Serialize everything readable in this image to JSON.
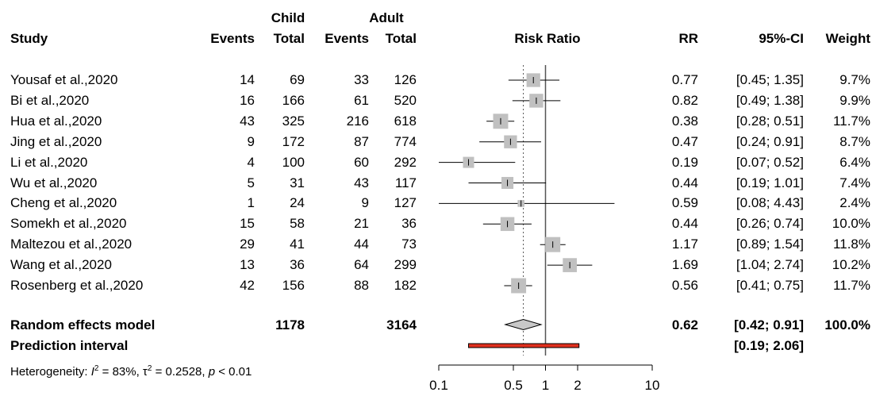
{
  "headers": {
    "study": "Study",
    "child_group": "Child",
    "adult_group": "Adult",
    "events1": "Events",
    "total1": "Total",
    "events2": "Events",
    "total2": "Total",
    "risk_ratio": "Risk Ratio",
    "rr": "RR",
    "ci": "95%-CI",
    "weight": "Weight"
  },
  "studies": [
    {
      "name": "Yousaf et al.,2020",
      "e1": "14",
      "n1": "69",
      "e2": "33",
      "n2": "126",
      "rr_text": "0.77",
      "ci_text": "[0.45; 1.35]",
      "w_text": "9.7%"
    },
    {
      "name": "Bi et al.,2020",
      "e1": "16",
      "n1": "166",
      "e2": "61",
      "n2": "520",
      "rr_text": "0.82",
      "ci_text": "[0.49; 1.38]",
      "w_text": "9.9%"
    },
    {
      "name": "Hua et al.,2020",
      "e1": "43",
      "n1": "325",
      "e2": "216",
      "n2": "618",
      "rr_text": "0.38",
      "ci_text": "[0.28; 0.51]",
      "w_text": "11.7%"
    },
    {
      "name": "Jing et al.,2020",
      "e1": "9",
      "n1": "172",
      "e2": "87",
      "n2": "774",
      "rr_text": "0.47",
      "ci_text": "[0.24; 0.91]",
      "w_text": "8.7%"
    },
    {
      "name": "Li et al.,2020",
      "e1": "4",
      "n1": "100",
      "e2": "60",
      "n2": "292",
      "rr_text": "0.19",
      "ci_text": "[0.07; 0.52]",
      "w_text": "6.4%"
    },
    {
      "name": "Wu et al.,2020",
      "e1": "5",
      "n1": "31",
      "e2": "43",
      "n2": "117",
      "rr_text": "0.44",
      "ci_text": "[0.19; 1.01]",
      "w_text": "7.4%"
    },
    {
      "name": "Cheng et al.,2020",
      "e1": "1",
      "n1": "24",
      "e2": "9",
      "n2": "127",
      "rr_text": "0.59",
      "ci_text": "[0.08; 4.43]",
      "w_text": "2.4%"
    },
    {
      "name": "Somekh et al.,2020",
      "e1": "15",
      "n1": "58",
      "e2": "21",
      "n2": "36",
      "rr_text": "0.44",
      "ci_text": "[0.26; 0.74]",
      "w_text": "10.0%"
    },
    {
      "name": "Maltezou et al.,2020",
      "e1": "29",
      "n1": "41",
      "e2": "44",
      "n2": "73",
      "rr_text": "1.17",
      "ci_text": "[0.89; 1.54]",
      "w_text": "11.8%"
    },
    {
      "name": "Wang et al.,2020",
      "e1": "13",
      "n1": "36",
      "e2": "64",
      "n2": "299",
      "rr_text": "1.69",
      "ci_text": "[1.04; 2.74]",
      "w_text": "10.2%"
    },
    {
      "name": "Rosenberg et al.,2020",
      "e1": "42",
      "n1": "156",
      "e2": "88",
      "n2": "182",
      "rr_text": "0.56",
      "ci_text": "[0.41; 0.75]",
      "w_text": "11.7%"
    }
  ],
  "pooled": {
    "label": "Random effects model",
    "n1": "1178",
    "n2": "3164",
    "rr_text": "0.62",
    "ci_text": "[0.42; 0.91]",
    "w_text": "100.0%"
  },
  "prediction": {
    "label": "Prediction interval",
    "ci_text": "[0.19; 2.06]"
  },
  "heterogeneity": {
    "prefix": "Heterogeneity: ",
    "i2_symbol": "I",
    "i2_sup": "2",
    "i2_value": " = 83%, ",
    "tau_symbol": "τ",
    "tau_sup": "2",
    "tau_value": " = 0.2528, ",
    "p_symbol": "p",
    "p_value": " < 0.01"
  },
  "chart_data": {
    "type": "forest",
    "scale": "log",
    "xlim": [
      0.1,
      10
    ],
    "ticks": [
      0.1,
      0.5,
      1,
      2,
      10
    ],
    "tick_labels": [
      "0.1",
      "0.5",
      "1",
      "2",
      "10"
    ],
    "null_value": 1,
    "pooled_reference": 0.62,
    "studies": [
      {
        "rr": 0.77,
        "lo": 0.45,
        "hi": 1.35,
        "weight": 9.7
      },
      {
        "rr": 0.82,
        "lo": 0.49,
        "hi": 1.38,
        "weight": 9.9
      },
      {
        "rr": 0.38,
        "lo": 0.28,
        "hi": 0.51,
        "weight": 11.7
      },
      {
        "rr": 0.47,
        "lo": 0.24,
        "hi": 0.91,
        "weight": 8.7
      },
      {
        "rr": 0.19,
        "lo": 0.07,
        "hi": 0.52,
        "weight": 6.4
      },
      {
        "rr": 0.44,
        "lo": 0.19,
        "hi": 1.01,
        "weight": 7.4
      },
      {
        "rr": 0.59,
        "lo": 0.08,
        "hi": 4.43,
        "weight": 2.4
      },
      {
        "rr": 0.44,
        "lo": 0.26,
        "hi": 0.74,
        "weight": 10.0
      },
      {
        "rr": 1.17,
        "lo": 0.89,
        "hi": 1.54,
        "weight": 11.8
      },
      {
        "rr": 1.69,
        "lo": 1.04,
        "hi": 2.74,
        "weight": 10.2
      },
      {
        "rr": 0.56,
        "lo": 0.41,
        "hi": 0.75,
        "weight": 11.7
      }
    ],
    "pooled": {
      "rr": 0.62,
      "lo": 0.42,
      "hi": 0.91
    },
    "prediction": {
      "lo": 0.19,
      "hi": 2.06
    },
    "colors": {
      "box": "#c0c0c0",
      "prediction_fill": "#e0301e",
      "diamond_fill": "#c8c8c8"
    }
  }
}
